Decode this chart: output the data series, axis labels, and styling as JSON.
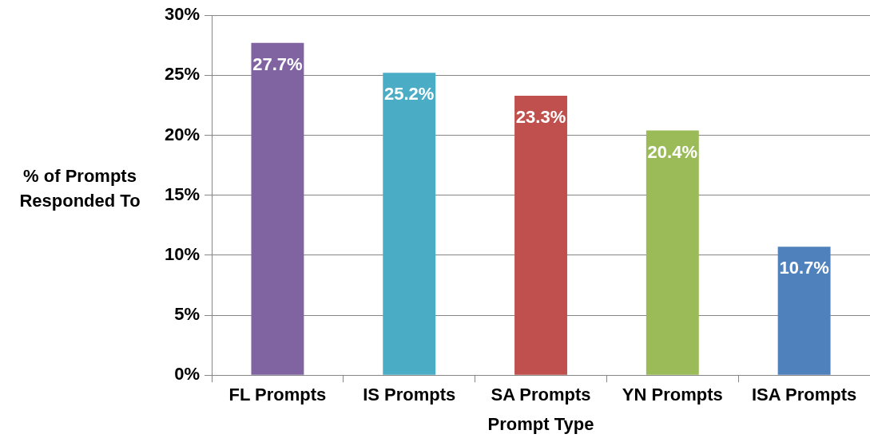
{
  "chart_data": {
    "type": "bar",
    "xlabel": "Prompt Type",
    "ylabel": "% of Prompts Responded To",
    "categories": [
      "FL Prompts",
      "IS Prompts",
      "SA Prompts",
      "YN Prompts",
      "ISA Prompts"
    ],
    "values": [
      27.7,
      25.2,
      23.3,
      20.4,
      10.7
    ],
    "colors": [
      "#8064a2",
      "#4bacc6",
      "#c0504d",
      "#9bbb59",
      "#4f81bd"
    ],
    "value_labels": [
      "27.7%",
      "25.2%",
      "23.3%",
      "20.4%",
      "10.7%"
    ],
    "ylim": [
      0,
      30
    ],
    "yticks": [
      {
        "value": 0,
        "label": "0%"
      },
      {
        "value": 5,
        "label": "5%"
      },
      {
        "value": 10,
        "label": "10%"
      },
      {
        "value": 15,
        "label": "15%"
      },
      {
        "value": 20,
        "label": "20%"
      },
      {
        "value": 25,
        "label": "25%"
      },
      {
        "value": 30,
        "label": "30%"
      }
    ],
    "grid": "y",
    "legend": false
  }
}
